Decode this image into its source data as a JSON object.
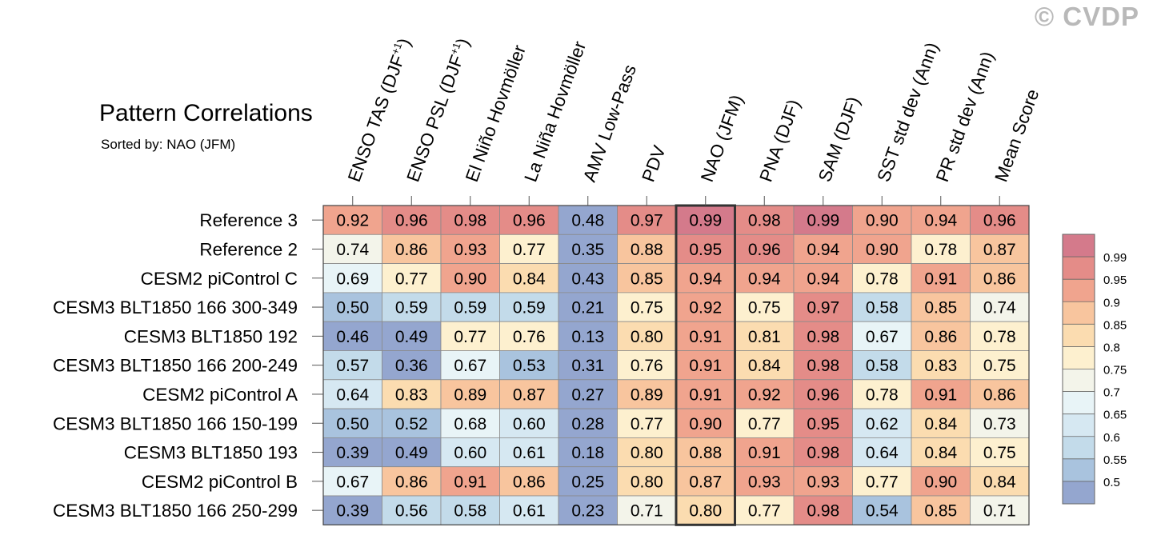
{
  "watermark": "© CVDP",
  "chart_data": {
    "type": "heatmap",
    "title": "Pattern Correlations",
    "subtitle": "Sorted by: NAO (JFM)",
    "highlight_column": "NAO (JFM)",
    "columns": [
      "ENSO TAS (DJF+1)",
      "ENSO PSL (DJF+1)",
      "El Niño Hovmöller",
      "La Niña Hovmöller",
      "AMV Low-Pass",
      "PDV",
      "NAO (JFM)",
      "PNA (DJF)",
      "SAM (DJF)",
      "SST std dev (Ann)",
      "PR std dev (Ann)",
      "Mean Score"
    ],
    "column_label_parts": [
      [
        "ENSO TAS (DJF",
        "+1",
        ")"
      ],
      [
        "ENSO PSL (DJF",
        "+1",
        ")"
      ],
      [
        "El Niño Hovmöller",
        "",
        ""
      ],
      [
        "La Niña Hovmöller",
        "",
        ""
      ],
      [
        "AMV Low-Pass",
        "",
        ""
      ],
      [
        "PDV",
        "",
        ""
      ],
      [
        "NAO (JFM)",
        "",
        ""
      ],
      [
        "PNA (DJF)",
        "",
        ""
      ],
      [
        "SAM (DJF)",
        "",
        ""
      ],
      [
        "SST std dev (Ann)",
        "",
        ""
      ],
      [
        "PR std dev (Ann)",
        "",
        ""
      ],
      [
        "Mean Score",
        "",
        ""
      ]
    ],
    "rows": [
      "Reference 3",
      "Reference 2",
      "CESM2 piControl C",
      "CESM3 BLT1850 166 300-349",
      "CESM3 BLT1850 192",
      "CESM3 BLT1850 166 200-249",
      "CESM2 piControl A",
      "CESM3 BLT1850 166 150-199",
      "CESM3 BLT1850 193",
      "CESM2 piControl B",
      "CESM3 BLT1850 166 250-299"
    ],
    "values": [
      [
        0.92,
        0.96,
        0.98,
        0.96,
        0.48,
        0.97,
        0.99,
        0.98,
        0.99,
        0.9,
        0.94,
        0.96
      ],
      [
        0.74,
        0.86,
        0.93,
        0.77,
        0.35,
        0.88,
        0.95,
        0.96,
        0.94,
        0.9,
        0.78,
        0.87
      ],
      [
        0.69,
        0.77,
        0.9,
        0.84,
        0.43,
        0.85,
        0.94,
        0.94,
        0.94,
        0.78,
        0.91,
        0.86
      ],
      [
        0.5,
        0.59,
        0.59,
        0.59,
        0.21,
        0.75,
        0.92,
        0.75,
        0.97,
        0.58,
        0.85,
        0.74
      ],
      [
        0.46,
        0.49,
        0.77,
        0.76,
        0.13,
        0.8,
        0.91,
        0.81,
        0.98,
        0.67,
        0.86,
        0.78
      ],
      [
        0.57,
        0.36,
        0.67,
        0.53,
        0.31,
        0.76,
        0.91,
        0.84,
        0.98,
        0.58,
        0.83,
        0.75
      ],
      [
        0.64,
        0.83,
        0.89,
        0.87,
        0.27,
        0.89,
        0.91,
        0.92,
        0.96,
        0.78,
        0.91,
        0.86
      ],
      [
        0.5,
        0.52,
        0.68,
        0.6,
        0.28,
        0.77,
        0.9,
        0.77,
        0.95,
        0.62,
        0.84,
        0.73
      ],
      [
        0.39,
        0.49,
        0.6,
        0.61,
        0.18,
        0.8,
        0.88,
        0.91,
        0.98,
        0.64,
        0.84,
        0.75
      ],
      [
        0.67,
        0.86,
        0.91,
        0.86,
        0.25,
        0.8,
        0.87,
        0.93,
        0.93,
        0.77,
        0.9,
        0.84
      ],
      [
        0.39,
        0.56,
        0.58,
        0.61,
        0.23,
        0.71,
        0.8,
        0.77,
        0.98,
        0.54,
        0.85,
        0.71
      ]
    ],
    "colorbar": {
      "levels": [
        "0.5",
        "0.55",
        "0.6",
        "0.65",
        "0.7",
        "0.75",
        "0.8",
        "0.85",
        "0.9",
        "0.95",
        "0.99"
      ],
      "colors": [
        "#94a6cf",
        "#a9c3de",
        "#c3dbea",
        "#d6e8f2",
        "#e8f4f7",
        "#f3f4ea",
        "#fdf0cf",
        "#fbdcb0",
        "#f8c59e",
        "#f0a48e",
        "#e48c88",
        "#d47a8b"
      ]
    }
  }
}
